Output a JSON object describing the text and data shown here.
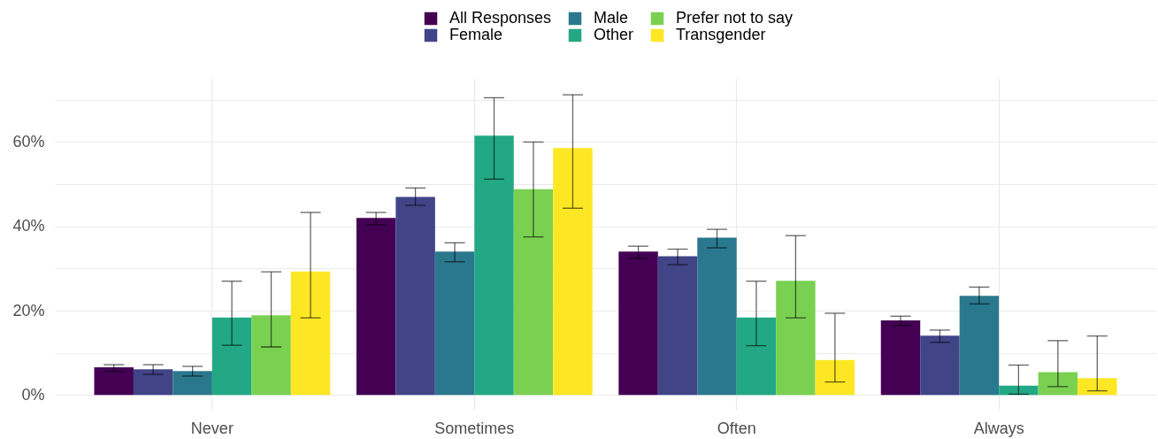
{
  "chart_data": {
    "type": "bar",
    "categories": [
      "Never",
      "Sometimes",
      "Often",
      "Always"
    ],
    "series": [
      {
        "name": "All Responses",
        "color": "#440154",
        "values": [
          6.6,
          42.0,
          34.0,
          17.7
        ],
        "errors": [
          [
            5.6,
            7.2
          ],
          [
            40.4,
            43.3
          ],
          [
            32.4,
            35.3
          ],
          [
            16.5,
            18.7
          ]
        ]
      },
      {
        "name": "Female",
        "color": "#414487",
        "values": [
          6.1,
          47.0,
          32.9,
          14.1
        ],
        "errors": [
          [
            4.9,
            7.2
          ],
          [
            45.0,
            49.1
          ],
          [
            30.9,
            34.6
          ],
          [
            12.5,
            15.4
          ]
        ]
      },
      {
        "name": "Male",
        "color": "#2a788e",
        "values": [
          5.7,
          34.0,
          37.3,
          23.5
        ],
        "errors": [
          [
            4.5,
            6.8
          ],
          [
            31.6,
            36.1
          ],
          [
            34.9,
            39.3
          ],
          [
            21.6,
            25.6
          ]
        ]
      },
      {
        "name": "Other",
        "color": "#22a884",
        "values": [
          18.4,
          61.5,
          18.4,
          2.2
        ],
        "errors": [
          [
            11.8,
            27.0
          ],
          [
            51.2,
            70.5
          ],
          [
            11.7,
            27.0
          ],
          [
            0.2,
            7.1
          ]
        ]
      },
      {
        "name": "Prefer not to say",
        "color": "#7ad151",
        "values": [
          18.9,
          48.8,
          27.1,
          5.4
        ],
        "errors": [
          [
            11.4,
            29.2
          ],
          [
            37.5,
            60.0
          ],
          [
            18.3,
            37.8
          ],
          [
            2.0,
            12.9
          ]
        ]
      },
      {
        "name": "Transgender",
        "color": "#fde725",
        "values": [
          29.3,
          58.6,
          8.3,
          4.0
        ],
        "errors": [
          [
            18.3,
            43.3
          ],
          [
            44.3,
            71.2
          ],
          [
            3.1,
            19.4
          ],
          [
            1.0,
            14.0
          ]
        ]
      }
    ],
    "ylim": [
      -3.5,
      75
    ],
    "yticks": [
      {
        "value": 0,
        "label": "0%"
      },
      {
        "value": 10,
        "label": null
      },
      {
        "value": 20,
        "label": "20%"
      },
      {
        "value": 30,
        "label": null
      },
      {
        "value": 40,
        "label": "40%"
      },
      {
        "value": 50,
        "label": null
      },
      {
        "value": 60,
        "label": "60%"
      },
      {
        "value": 70,
        "label": null
      }
    ],
    "grid": true,
    "legend": "top"
  }
}
